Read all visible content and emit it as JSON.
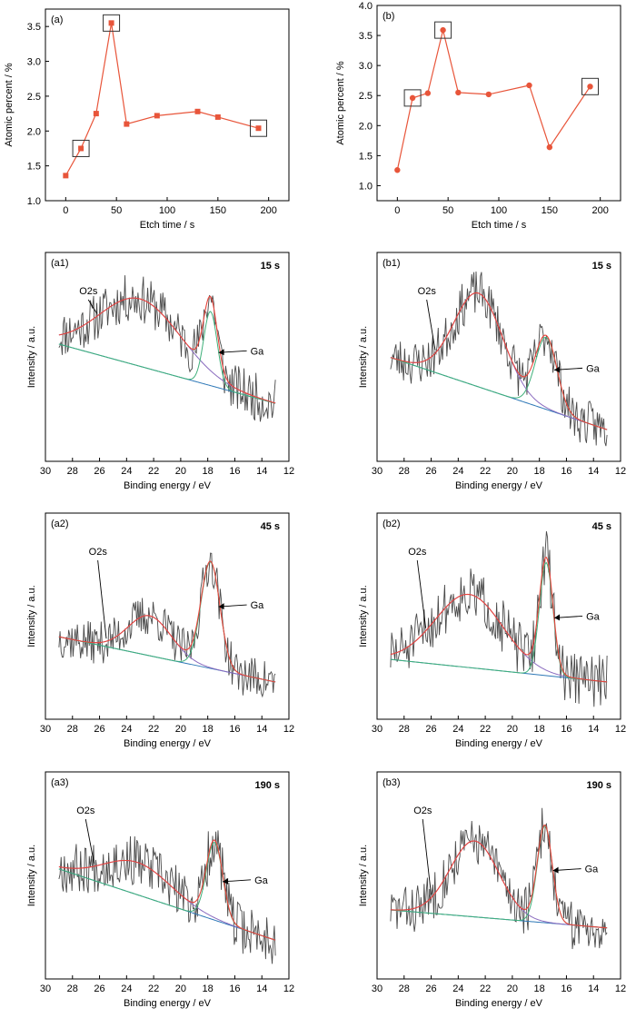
{
  "chart_data": [
    {
      "panel": "(a)",
      "type": "line",
      "xlabel": "Etch time / s",
      "ylabel": "Atomic percent / %",
      "xlim": [
        -20,
        220
      ],
      "ylim": [
        1.0,
        3.75
      ],
      "xticks": [
        0,
        50,
        100,
        150,
        200
      ],
      "yticks": [
        1.0,
        1.5,
        2.0,
        2.5,
        3.0,
        3.5
      ],
      "ytick_labels": [
        "1.0",
        "1.5",
        "2.0",
        "2.5",
        "3.0",
        "3.5"
      ],
      "marker": "square",
      "color": "#e8553a",
      "x": [
        0,
        15,
        30,
        45,
        60,
        90,
        130,
        150,
        190
      ],
      "y": [
        1.36,
        1.75,
        2.25,
        3.55,
        2.1,
        2.22,
        2.28,
        2.2,
        2.04
      ],
      "highlight_boxes_x": [
        15,
        45,
        190
      ]
    },
    {
      "panel": "(b)",
      "type": "line",
      "xlabel": "Etch time / s",
      "ylabel": "Atomic percent / %",
      "xlim": [
        -20,
        220
      ],
      "ylim": [
        0.75,
        4.0
      ],
      "xticks": [
        0,
        50,
        100,
        150,
        200
      ],
      "yticks": [
        1.0,
        1.5,
        2.0,
        2.5,
        3.0,
        3.5,
        4.0
      ],
      "ytick_labels": [
        "1.0",
        "1.5",
        "2.0",
        "2.5",
        "3.0",
        "3.5",
        "4.0"
      ],
      "marker": "circle",
      "color": "#e8553a",
      "x": [
        0,
        15,
        30,
        45,
        60,
        90,
        130,
        150,
        190
      ],
      "y": [
        1.26,
        2.46,
        2.54,
        3.59,
        2.55,
        2.52,
        2.67,
        1.64,
        2.65
      ],
      "highlight_boxes_x": [
        15,
        45,
        190
      ]
    },
    {
      "panel": "(a1)",
      "time_label": "15 s",
      "type": "line",
      "xlabel": "Binding energy / eV",
      "ylabel": "Intensity / a.u.",
      "xlim": [
        30,
        12
      ],
      "xticks": [
        30,
        28,
        26,
        24,
        22,
        20,
        18,
        16,
        14,
        12
      ],
      "annotations": {
        "o2s": "O2s",
        "ga": "Ga"
      },
      "x": [
        29,
        13
      ],
      "background_y": [
        0.62,
        0.18
      ],
      "peaks": [
        {
          "center": 23,
          "height": 0.5,
          "width": 3.0
        },
        {
          "center": 17.8,
          "height": 0.55,
          "width": 0.5
        }
      ],
      "noise_amp": 0.18,
      "seed": 11,
      "ylim": [
        -0.25,
        1.3
      ]
    },
    {
      "panel": "(b1)",
      "time_label": "15 s",
      "type": "line",
      "xlabel": "Binding energy / eV",
      "ylabel": "Intensity / a.u.",
      "xlim": [
        30,
        12
      ],
      "xticks": [
        30,
        28,
        26,
        24,
        22,
        20,
        18,
        16,
        14,
        12
      ],
      "annotations": {
        "o2s": "O2s",
        "ga": "Ga"
      },
      "x": [
        29,
        13
      ],
      "background_y": [
        0.62,
        0.12
      ],
      "peaks": [
        {
          "center": 22.5,
          "height": 0.65,
          "width": 1.8
        },
        {
          "center": 17.5,
          "height": 0.5,
          "width": 0.8
        }
      ],
      "noise_amp": 0.16,
      "seed": 23,
      "ylim": [
        -0.1,
        1.35
      ]
    },
    {
      "panel": "(a2)",
      "time_label": "45 s",
      "type": "line",
      "xlabel": "Binding energy / eV",
      "ylabel": "Intensity / a.u.",
      "xlim": [
        30,
        12
      ],
      "xticks": [
        30,
        28,
        26,
        24,
        22,
        20,
        18,
        16,
        14,
        12
      ],
      "annotations": {
        "o2s": "O2s",
        "ga": "Ga"
      },
      "x": [
        29,
        13
      ],
      "background_y": [
        0.42,
        0.08
      ],
      "peaks": [
        {
          "center": 22.3,
          "height": 0.3,
          "width": 1.6
        },
        {
          "center": 17.8,
          "height": 0.8,
          "width": 0.7
        }
      ],
      "noise_amp": 0.16,
      "seed": 37,
      "ylim": [
        -0.2,
        1.35
      ]
    },
    {
      "panel": "(b2)",
      "time_label": "45 s",
      "type": "line",
      "xlabel": "Binding energy / eV",
      "ylabel": "Intensity / a.u.",
      "xlim": [
        30,
        12
      ],
      "xticks": [
        30,
        28,
        26,
        24,
        22,
        20,
        18,
        16,
        14,
        12
      ],
      "annotations": {
        "o2s": "O2s",
        "ga": "Ga"
      },
      "x": [
        29,
        13
      ],
      "background_y": [
        0.25,
        0.08
      ],
      "peaks": [
        {
          "center": 23.2,
          "height": 0.55,
          "width": 2.5
        },
        {
          "center": 17.5,
          "height": 0.85,
          "width": 0.5
        }
      ],
      "noise_amp": 0.2,
      "seed": 51,
      "ylim": [
        -0.2,
        1.35
      ]
    },
    {
      "panel": "(a3)",
      "time_label": "190 s",
      "type": "line",
      "xlabel": "Binding energy / eV",
      "ylabel": "Intensity / a.u.",
      "xlim": [
        30,
        12
      ],
      "xticks": [
        30,
        28,
        26,
        24,
        22,
        20,
        18,
        16,
        14,
        12
      ],
      "annotations": {
        "o2s": "O2s",
        "ga": "Ga"
      },
      "x": [
        29,
        13
      ],
      "background_y": [
        0.6,
        0.05
      ],
      "peaks": [
        {
          "center": 23.2,
          "height": 0.25,
          "width": 2.5
        },
        {
          "center": 17.5,
          "height": 0.6,
          "width": 0.6
        }
      ],
      "noise_amp": 0.2,
      "seed": 67,
      "ylim": [
        -0.25,
        1.35
      ]
    },
    {
      "panel": "(b3)",
      "time_label": "190 s",
      "type": "line",
      "xlabel": "Binding energy / eV",
      "ylabel": "Intensity / a.u.",
      "xlim": [
        30,
        12
      ],
      "xticks": [
        30,
        28,
        26,
        24,
        22,
        20,
        18,
        16,
        14,
        12
      ],
      "annotations": {
        "o2s": "O2s",
        "ga": "Ga"
      },
      "x": [
        29,
        13
      ],
      "background_y": [
        0.35,
        0.22
      ],
      "peaks": [
        {
          "center": 22.8,
          "height": 0.55,
          "width": 1.8
        },
        {
          "center": 17.6,
          "height": 0.7,
          "width": 0.55
        }
      ],
      "noise_amp": 0.18,
      "seed": 83,
      "ylim": [
        -0.15,
        1.35
      ]
    }
  ],
  "colors": {
    "atomic_series": "#e8553a",
    "raw_spectrum": "#4a4a4a",
    "envelope": "#e8433a",
    "o2s_component": "#8a6bbf",
    "ga_component": "#3fb07a",
    "background": "#2e78b7",
    "highlight_box": "#333333"
  }
}
